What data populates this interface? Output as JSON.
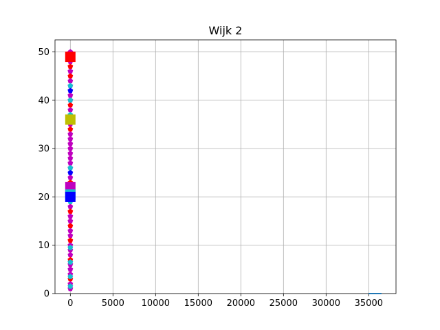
{
  "chart_data": {
    "type": "scatter",
    "title": "Wijk 2",
    "xlabel": "",
    "ylabel": "",
    "xlim": [
      -1800,
      38200
    ],
    "ylim": [
      0,
      52.5
    ],
    "grid": true,
    "x_ticks": [
      0,
      5000,
      10000,
      15000,
      20000,
      25000,
      30000,
      35000
    ],
    "y_ticks": [
      0,
      10,
      20,
      30,
      40,
      50
    ],
    "x_tick_labels": [
      "0",
      "5000",
      "10000",
      "15000",
      "20000",
      "25000",
      "30000",
      "35000"
    ],
    "y_tick_labels": [
      "0",
      "10",
      "20",
      "30",
      "40",
      "50"
    ],
    "series": [
      {
        "color": "#bf00bf",
        "marker": "pentagon",
        "x": [
          0,
          0,
          0,
          0,
          0,
          0,
          0,
          0,
          0,
          0,
          0,
          0,
          0,
          0,
          0,
          0,
          0,
          0,
          0,
          0,
          0,
          0,
          0,
          0,
          0,
          0,
          0,
          0,
          0,
          0,
          0,
          0,
          0,
          0
        ],
        "y": [
          1,
          2,
          4,
          5,
          6,
          8,
          9,
          10,
          12,
          13,
          15,
          16,
          18,
          22,
          24,
          26,
          27,
          28,
          29,
          30,
          31,
          32,
          33,
          35,
          36,
          38,
          40,
          41,
          43,
          44,
          46,
          48,
          49,
          50
        ]
      },
      {
        "color": "#ff0000",
        "marker": "pentagon",
        "x": [
          0,
          0,
          0,
          0,
          0,
          0,
          0,
          0,
          0,
          0
        ],
        "y": [
          3,
          7,
          11,
          14,
          17,
          23,
          34,
          39,
          45,
          47
        ]
      },
      {
        "color": "#17becf",
        "marker": "pentagon",
        "x": [
          0,
          0,
          0,
          0,
          0,
          0,
          0,
          0,
          0,
          0,
          0
        ],
        "y": [
          1.5,
          3.5,
          6.5,
          9.5,
          19,
          21,
          26,
          35.5,
          37,
          40,
          43
        ]
      },
      {
        "color": "#0000ff",
        "marker": "pentagon",
        "x": [
          0,
          0,
          0,
          0,
          0
        ],
        "y": [
          19.5,
          25,
          36,
          42,
          48.5
        ]
      },
      {
        "color": "#ff0000",
        "marker": "square",
        "x": [
          0
        ],
        "y": [
          49
        ]
      },
      {
        "color": "#bfbf00",
        "marker": "square",
        "x": [
          0
        ],
        "y": [
          36
        ]
      },
      {
        "color": "#bf00bf",
        "marker": "square",
        "x": [
          0
        ],
        "y": [
          22
        ]
      },
      {
        "color": "#17becf",
        "marker": "square",
        "x": [
          0
        ],
        "y": [
          20.5
        ]
      },
      {
        "color": "#0000ff",
        "marker": "square",
        "x": [
          0
        ],
        "y": [
          20
        ]
      },
      {
        "color": "#1f77b4",
        "marker": "line",
        "x": [
          35000,
          36500
        ],
        "y": [
          0,
          0
        ]
      }
    ]
  }
}
